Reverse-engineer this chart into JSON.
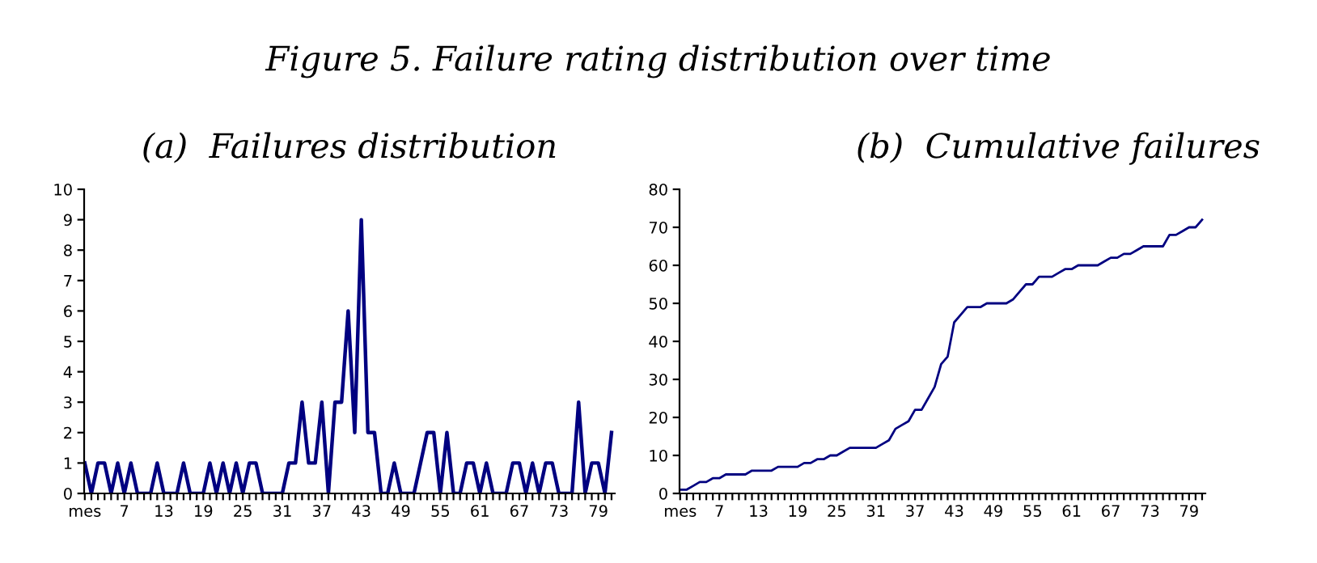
{
  "chart_data": [
    {
      "type": "line",
      "title": "(a)  Failures distribution",
      "annotations": [
        "Figure 5. Failure rating distribution over time"
      ],
      "categories": [
        "mes",
        null,
        null,
        null,
        null,
        null,
        "7",
        null,
        null,
        null,
        null,
        null,
        "13",
        null,
        null,
        null,
        null,
        null,
        "19",
        null,
        null,
        null,
        null,
        null,
        "25",
        null,
        null,
        null,
        null,
        null,
        "31",
        null,
        null,
        null,
        null,
        null,
        "37",
        null,
        null,
        null,
        null,
        null,
        "43",
        null,
        null,
        null,
        null,
        null,
        "49",
        null,
        null,
        null,
        null,
        null,
        "55",
        null,
        null,
        null,
        null,
        null,
        "61",
        null,
        null,
        null,
        null,
        null,
        "67",
        null,
        null,
        null,
        null,
        null,
        "73",
        null,
        null,
        null,
        null,
        null,
        "79",
        null,
        null
      ],
      "series": [
        {
          "color": "#000080",
          "values": [
            1,
            0,
            1,
            1,
            0,
            1,
            0,
            1,
            0,
            0,
            0,
            1,
            0,
            0,
            0,
            1,
            0,
            0,
            0,
            1,
            0,
            1,
            0,
            1,
            0,
            1,
            1,
            0,
            0,
            0,
            0,
            1,
            1,
            3,
            1,
            1,
            3,
            0,
            3,
            3,
            6,
            2,
            9,
            2,
            2,
            0,
            0,
            1,
            0,
            0,
            0,
            1,
            2,
            2,
            0,
            2,
            0,
            0,
            1,
            1,
            0,
            1,
            0,
            0,
            0,
            1,
            1,
            0,
            1,
            0,
            1,
            1,
            0,
            0,
            0,
            3,
            0,
            1,
            1,
            0,
            2
          ]
        }
      ],
      "ylim": [
        0,
        10
      ],
      "yticks": [
        0,
        1,
        2,
        3,
        4,
        5,
        6,
        7,
        8,
        9,
        10
      ],
      "grid": false,
      "marker": "none",
      "line_style": "solid"
    },
    {
      "type": "line",
      "title": "(b)  Cumulative failures",
      "categories": [
        "mes",
        null,
        null,
        null,
        null,
        null,
        "7",
        null,
        null,
        null,
        null,
        null,
        "13",
        null,
        null,
        null,
        null,
        null,
        "19",
        null,
        null,
        null,
        null,
        null,
        "25",
        null,
        null,
        null,
        null,
        null,
        "31",
        null,
        null,
        null,
        null,
        null,
        "37",
        null,
        null,
        null,
        null,
        null,
        "43",
        null,
        null,
        null,
        null,
        null,
        "49",
        null,
        null,
        null,
        null,
        null,
        "55",
        null,
        null,
        null,
        null,
        null,
        "61",
        null,
        null,
        null,
        null,
        null,
        "67",
        null,
        null,
        null,
        null,
        null,
        "73",
        null,
        null,
        null,
        null,
        null,
        "79",
        null,
        null
      ],
      "series": [
        {
          "color": "#000080",
          "values": [
            1,
            1,
            2,
            3,
            3,
            4,
            4,
            5,
            5,
            5,
            5,
            6,
            6,
            6,
            6,
            7,
            7,
            7,
            7,
            8,
            8,
            9,
            9,
            10,
            10,
            11,
            12,
            12,
            12,
            12,
            12,
            13,
            14,
            17,
            18,
            19,
            22,
            22,
            25,
            28,
            34,
            36,
            45,
            47,
            49,
            49,
            49,
            50,
            50,
            50,
            50,
            51,
            53,
            55,
            55,
            57,
            57,
            57,
            58,
            59,
            59,
            60,
            60,
            60,
            60,
            61,
            62,
            62,
            63,
            63,
            64,
            65,
            65,
            65,
            65,
            68,
            68,
            69,
            70,
            70,
            72
          ]
        }
      ],
      "ylim": [
        0,
        80
      ],
      "yticks": [
        0,
        10,
        20,
        30,
        40,
        50,
        60,
        70,
        80
      ],
      "grid": false,
      "marker": "none",
      "line_style": "solid"
    }
  ]
}
